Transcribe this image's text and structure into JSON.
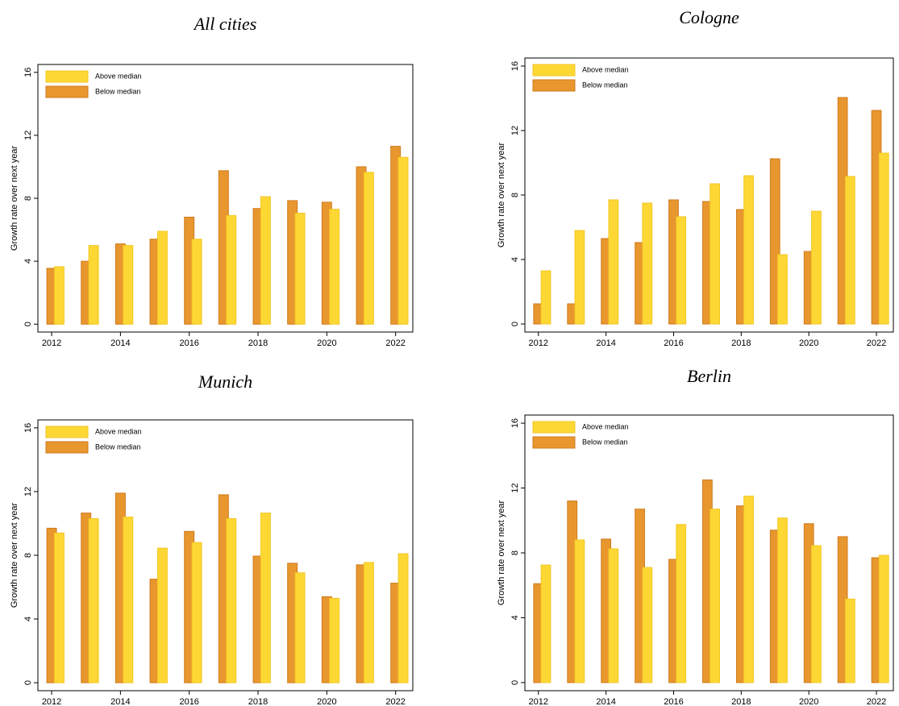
{
  "chart_data": [
    {
      "type": "bar",
      "title": "All cities",
      "y_label": "Growth rate over next year",
      "x": [
        2012,
        2013,
        2014,
        2015,
        2016,
        2017,
        2018,
        2019,
        2020,
        2021,
        2022
      ],
      "xlim": [
        2011.6,
        2022.5
      ],
      "xticks": [
        2012,
        2014,
        2016,
        2018,
        2020,
        2022
      ],
      "ylim": [
        -0.5,
        16.5
      ],
      "yticks": [
        0,
        4,
        8,
        12,
        16
      ],
      "legend": "upper left",
      "series": [
        {
          "name": "Above median",
          "color": "#fdd835",
          "values": [
            3.65,
            5.0,
            5.0,
            5.9,
            5.4,
            6.9,
            8.1,
            7.05,
            7.3,
            9.65,
            10.6
          ]
        },
        {
          "name": "Below median",
          "color": "#e8972f",
          "values": [
            3.55,
            4.0,
            5.1,
            5.4,
            6.8,
            9.75,
            7.35,
            7.85,
            7.75,
            10.0,
            11.3
          ]
        }
      ]
    },
    {
      "type": "bar",
      "title": "Cologne",
      "y_label": "Growth rate over next year",
      "x": [
        2012,
        2013,
        2014,
        2015,
        2016,
        2017,
        2018,
        2019,
        2020,
        2021,
        2022
      ],
      "xlim": [
        2011.6,
        2022.5
      ],
      "xticks": [
        2012,
        2014,
        2016,
        2018,
        2020,
        2022
      ],
      "ylim": [
        -0.5,
        16.5
      ],
      "yticks": [
        0,
        4,
        8,
        12,
        16
      ],
      "legend": "upper left",
      "series": [
        {
          "name": "Above median",
          "color": "#fdd835",
          "values": [
            3.3,
            5.8,
            7.7,
            7.5,
            6.65,
            8.7,
            9.2,
            4.3,
            7.0,
            9.15,
            10.6
          ]
        },
        {
          "name": "Below median",
          "color": "#e8972f",
          "values": [
            1.25,
            1.25,
            5.3,
            5.05,
            7.7,
            7.6,
            7.1,
            10.25,
            4.5,
            14.05,
            13.25
          ]
        }
      ]
    },
    {
      "type": "bar",
      "title": "Munich",
      "y_label": "Growth rate over next year",
      "x": [
        2012,
        2013,
        2014,
        2015,
        2016,
        2017,
        2018,
        2019,
        2020,
        2021,
        2022
      ],
      "xlim": [
        2011.6,
        2022.5
      ],
      "xticks": [
        2012,
        2014,
        2016,
        2018,
        2020,
        2022
      ],
      "ylim": [
        -0.5,
        16.5
      ],
      "yticks": [
        0,
        4,
        8,
        12,
        16
      ],
      "legend": "upper left",
      "series": [
        {
          "name": "Above median",
          "color": "#fdd835",
          "values": [
            9.4,
            10.3,
            10.4,
            8.45,
            8.8,
            10.3,
            10.65,
            6.9,
            5.3,
            7.55,
            8.1
          ]
        },
        {
          "name": "Below median",
          "color": "#e8972f",
          "values": [
            9.7,
            10.65,
            11.9,
            6.5,
            9.5,
            11.8,
            7.95,
            7.5,
            5.4,
            7.4,
            6.25
          ]
        }
      ]
    },
    {
      "type": "bar",
      "title": "Berlin",
      "y_label": "Growth rate over next year",
      "x": [
        2012,
        2013,
        2014,
        2015,
        2016,
        2017,
        2018,
        2019,
        2020,
        2021,
        2022
      ],
      "xlim": [
        2011.6,
        2022.5
      ],
      "xticks": [
        2012,
        2014,
        2016,
        2018,
        2020,
        2022
      ],
      "ylim": [
        -0.5,
        16.5
      ],
      "yticks": [
        0,
        4,
        8,
        12,
        16
      ],
      "legend": "upper left",
      "series": [
        {
          "name": "Above median",
          "color": "#fdd835",
          "values": [
            7.25,
            8.8,
            8.25,
            7.1,
            9.75,
            10.7,
            11.5,
            10.15,
            8.45,
            5.15,
            7.85
          ]
        },
        {
          "name": "Below median",
          "color": "#e8972f",
          "values": [
            6.1,
            11.2,
            8.85,
            10.7,
            7.6,
            12.5,
            10.9,
            9.4,
            9.8,
            9.0,
            7.7
          ]
        }
      ]
    }
  ]
}
